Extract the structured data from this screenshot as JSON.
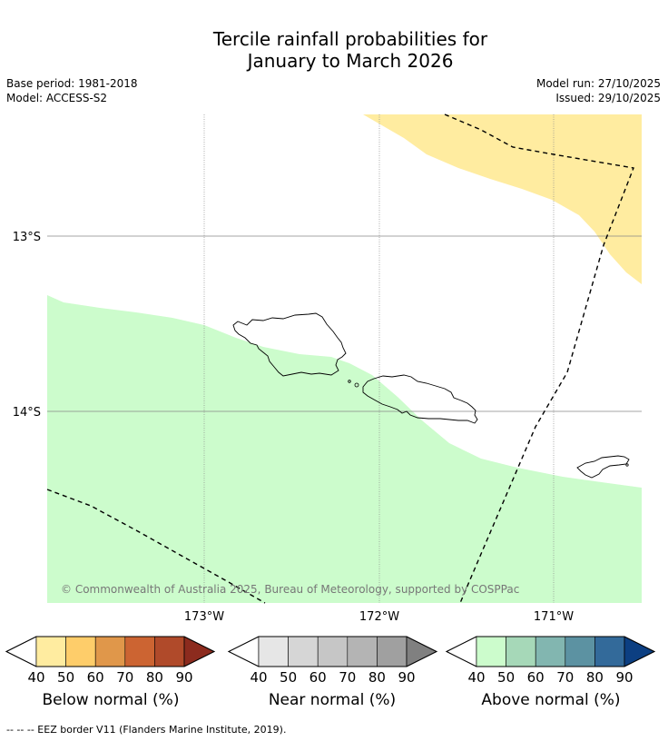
{
  "title_line1": "Tercile rainfall probabilities for",
  "title_line2": "January to March 2026",
  "meta": {
    "base_period": "Base period: 1981-2018",
    "model": "Model: ACCESS-S2",
    "model_run": "Model run: 27/10/2025",
    "issued": "Issued: 29/10/2025"
  },
  "map": {
    "lat_labels": [
      "13°S",
      "14°S"
    ],
    "lon_labels": [
      "173°W",
      "172°W",
      "171°W"
    ],
    "copyright": "© Commonwealth of Australia 2025, Bureau of Meteorology, supported by COSPPac",
    "colors": {
      "below_40": "#ffeca0",
      "above_40": "#ccfccc",
      "grid": "#888888",
      "land_outline": "#000000"
    }
  },
  "colorbars": [
    {
      "label": "Below normal (%)",
      "ticks": [
        "40",
        "50",
        "60",
        "70",
        "80",
        "90"
      ],
      "colors": [
        "#ffeca0",
        "#fecd6a",
        "#e0974a",
        "#cc6432",
        "#b04a2a",
        "#8c2b1e"
      ]
    },
    {
      "label": "Near normal (%)",
      "ticks": [
        "40",
        "50",
        "60",
        "70",
        "80",
        "90"
      ],
      "colors": [
        "#e6e6e6",
        "#d6d6d6",
        "#c6c6c6",
        "#b4b4b4",
        "#a0a0a0",
        "#808080"
      ]
    },
    {
      "label": "Above normal (%)",
      "ticks": [
        "40",
        "50",
        "60",
        "70",
        "80",
        "90"
      ],
      "colors": [
        "#ccfccc",
        "#a6d8b8",
        "#82b6b0",
        "#5c92a2",
        "#336a9a",
        "#0c3f82"
      ]
    }
  ],
  "footnote": "--  --  -- EEZ border V11 (Flanders Marine Institute, 2019)."
}
